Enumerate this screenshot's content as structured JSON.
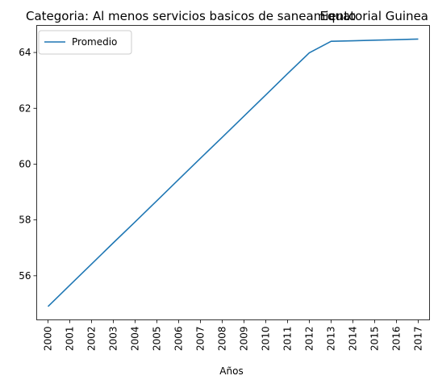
{
  "chart_data": {
    "type": "line",
    "title_left": "Categoria: Al menos servicios basicos de saneamiento",
    "title_right": "Equatorial Guinea",
    "xlabel": "Años",
    "ylabel": "",
    "x": [
      "2000",
      "2001",
      "2002",
      "2003",
      "2004",
      "2005",
      "2006",
      "2007",
      "2008",
      "2009",
      "2010",
      "2011",
      "2012",
      "2013",
      "2014",
      "2015",
      "2016",
      "2017"
    ],
    "series": [
      {
        "name": "Promedio",
        "color": "#1f77b4",
        "values": [
          54.9,
          55.66,
          56.42,
          57.18,
          57.93,
          58.69,
          59.45,
          60.21,
          60.96,
          61.72,
          62.48,
          63.24,
          63.99,
          64.4,
          64.42,
          64.44,
          64.46,
          64.48
        ]
      }
    ],
    "yticks": [
      56,
      58,
      60,
      62,
      64
    ],
    "ylim": [
      54.42,
      64.97
    ],
    "grid": false,
    "legend_position": "upper left"
  }
}
